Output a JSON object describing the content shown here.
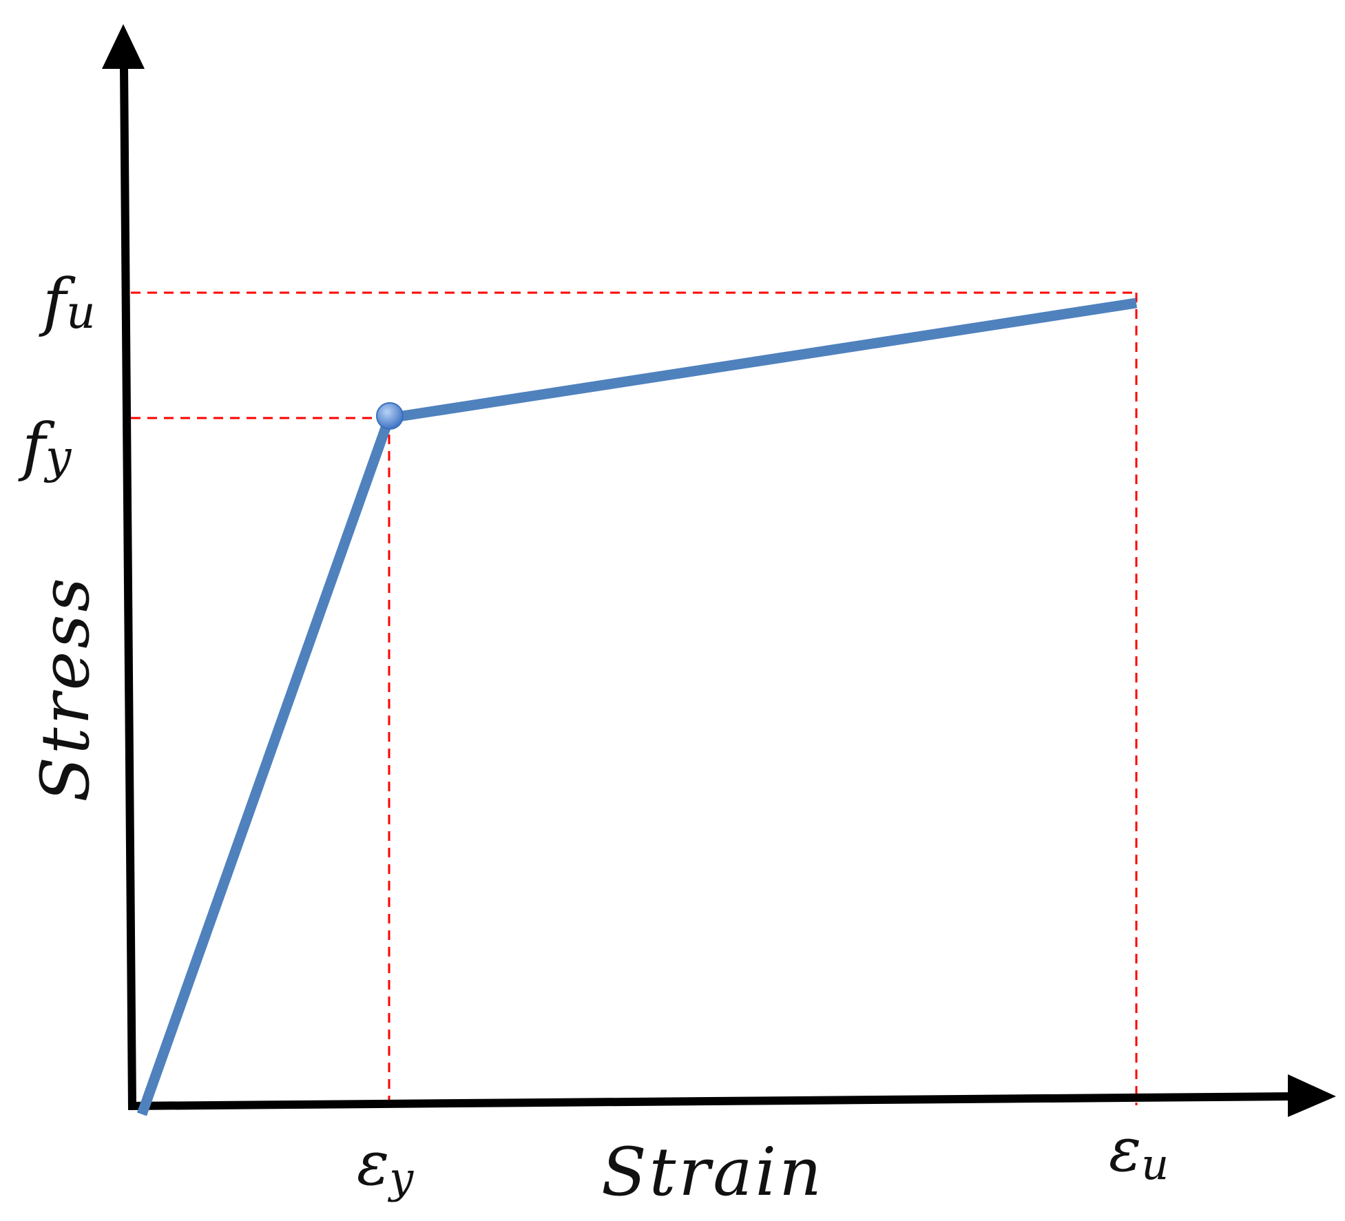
{
  "diagram": {
    "y_axis_label": "Stress",
    "x_axis_label": "Strain",
    "stress_labels": {
      "ultimate": {
        "base": "f",
        "sub": "u"
      },
      "yield": {
        "base": "f",
        "sub": "y"
      }
    },
    "strain_labels": {
      "yield": {
        "base": "ε",
        "sub": "y"
      },
      "ultimate": {
        "base": "ε",
        "sub": "u"
      }
    },
    "colors": {
      "curve": "#4f81bd",
      "guides": "#ff0000",
      "axes": "#000000",
      "yield_point": "#6a9ee0"
    }
  }
}
